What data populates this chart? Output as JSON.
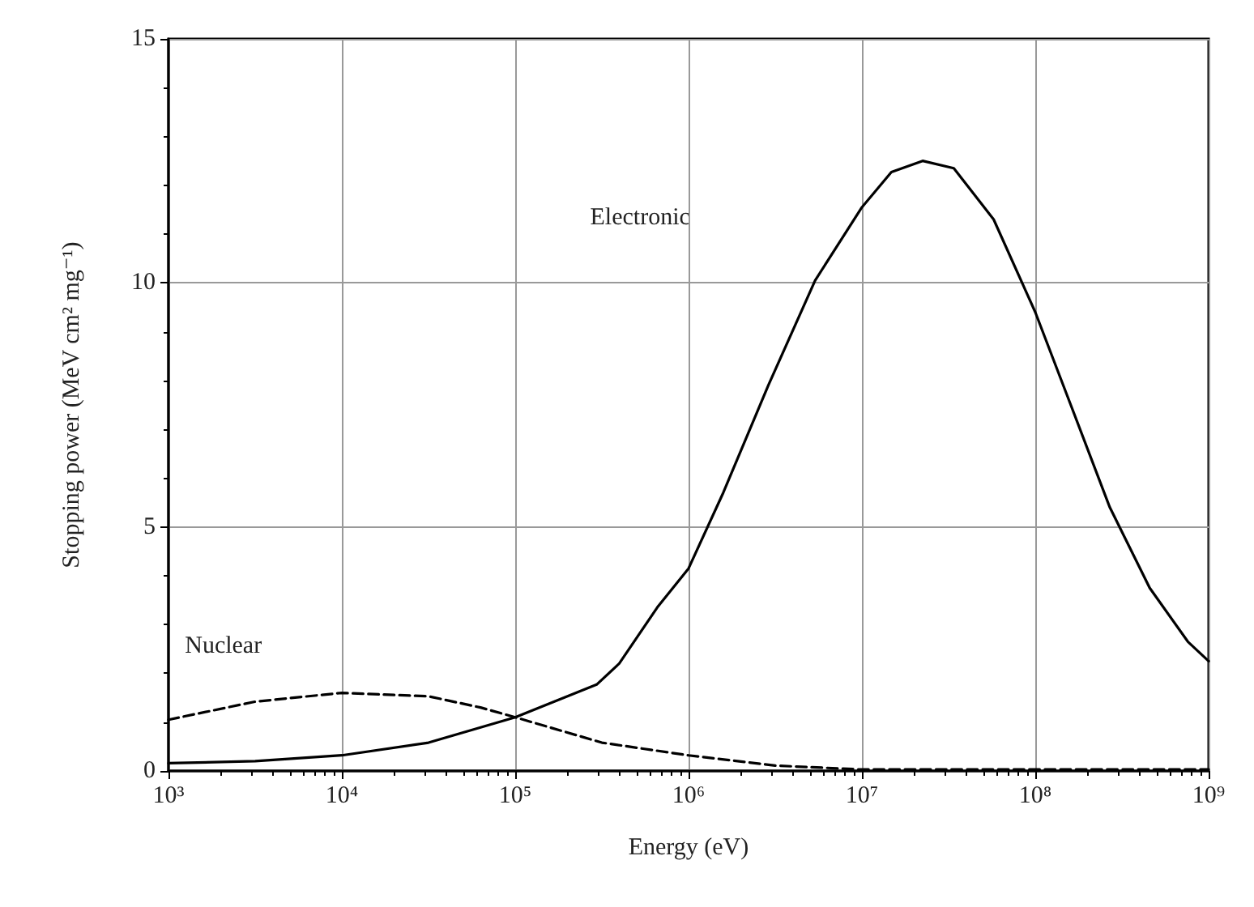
{
  "chart_data": {
    "type": "line",
    "xlabel": "Energy (eV)",
    "ylabel": "Stopping power (MeV cm² mg⁻¹)",
    "log": "x",
    "grid": true,
    "marker": "none",
    "xlim": [
      1000,
      1000000000
    ],
    "xticks": [
      {
        "value": 1000,
        "label": "10³"
      },
      {
        "value": 10000,
        "label": "10⁴"
      },
      {
        "value": 100000,
        "label": "10⁵"
      },
      {
        "value": 1000000,
        "label": "10⁶"
      },
      {
        "value": 10000000,
        "label": "10⁷"
      },
      {
        "value": 100000000,
        "label": "10⁸"
      },
      {
        "value": 1000000000,
        "label": "10⁹"
      }
    ],
    "ylim": [
      0,
      15
    ],
    "yticks": [
      0,
      5,
      10,
      15
    ],
    "series": [
      {
        "color": "#000000",
        "line_style": "solid",
        "x": [
          1000,
          3162,
          10000,
          31623,
          100000,
          295000,
          398000,
          660000,
          1000000,
          1585000,
          2884000,
          5370000,
          10000000,
          14790000,
          22390000,
          33880000,
          57540000,
          100000000,
          162200000,
          269200000,
          457100000,
          758600000,
          1000000000
        ],
        "values": [
          0.16,
          0.2,
          0.32,
          0.58,
          1.1,
          1.77,
          2.2,
          3.35,
          4.15,
          5.7,
          7.9,
          10.05,
          11.55,
          12.27,
          12.5,
          12.35,
          11.3,
          9.4,
          7.45,
          5.4,
          3.75,
          2.65,
          2.25
        ]
      },
      {
        "color": "#000000",
        "line_style": "dashed",
        "x": [
          1000,
          3162,
          10000,
          31623,
          63100,
          100000,
          316230,
          1000000,
          3162300,
          10000000,
          100000000,
          1000000000
        ],
        "values": [
          1.05,
          1.42,
          1.6,
          1.53,
          1.3,
          1.1,
          0.58,
          0.32,
          0.11,
          0.03,
          0.03,
          0.03
        ]
      }
    ],
    "annotations": [
      "Electronic",
      "Nuclear"
    ]
  }
}
